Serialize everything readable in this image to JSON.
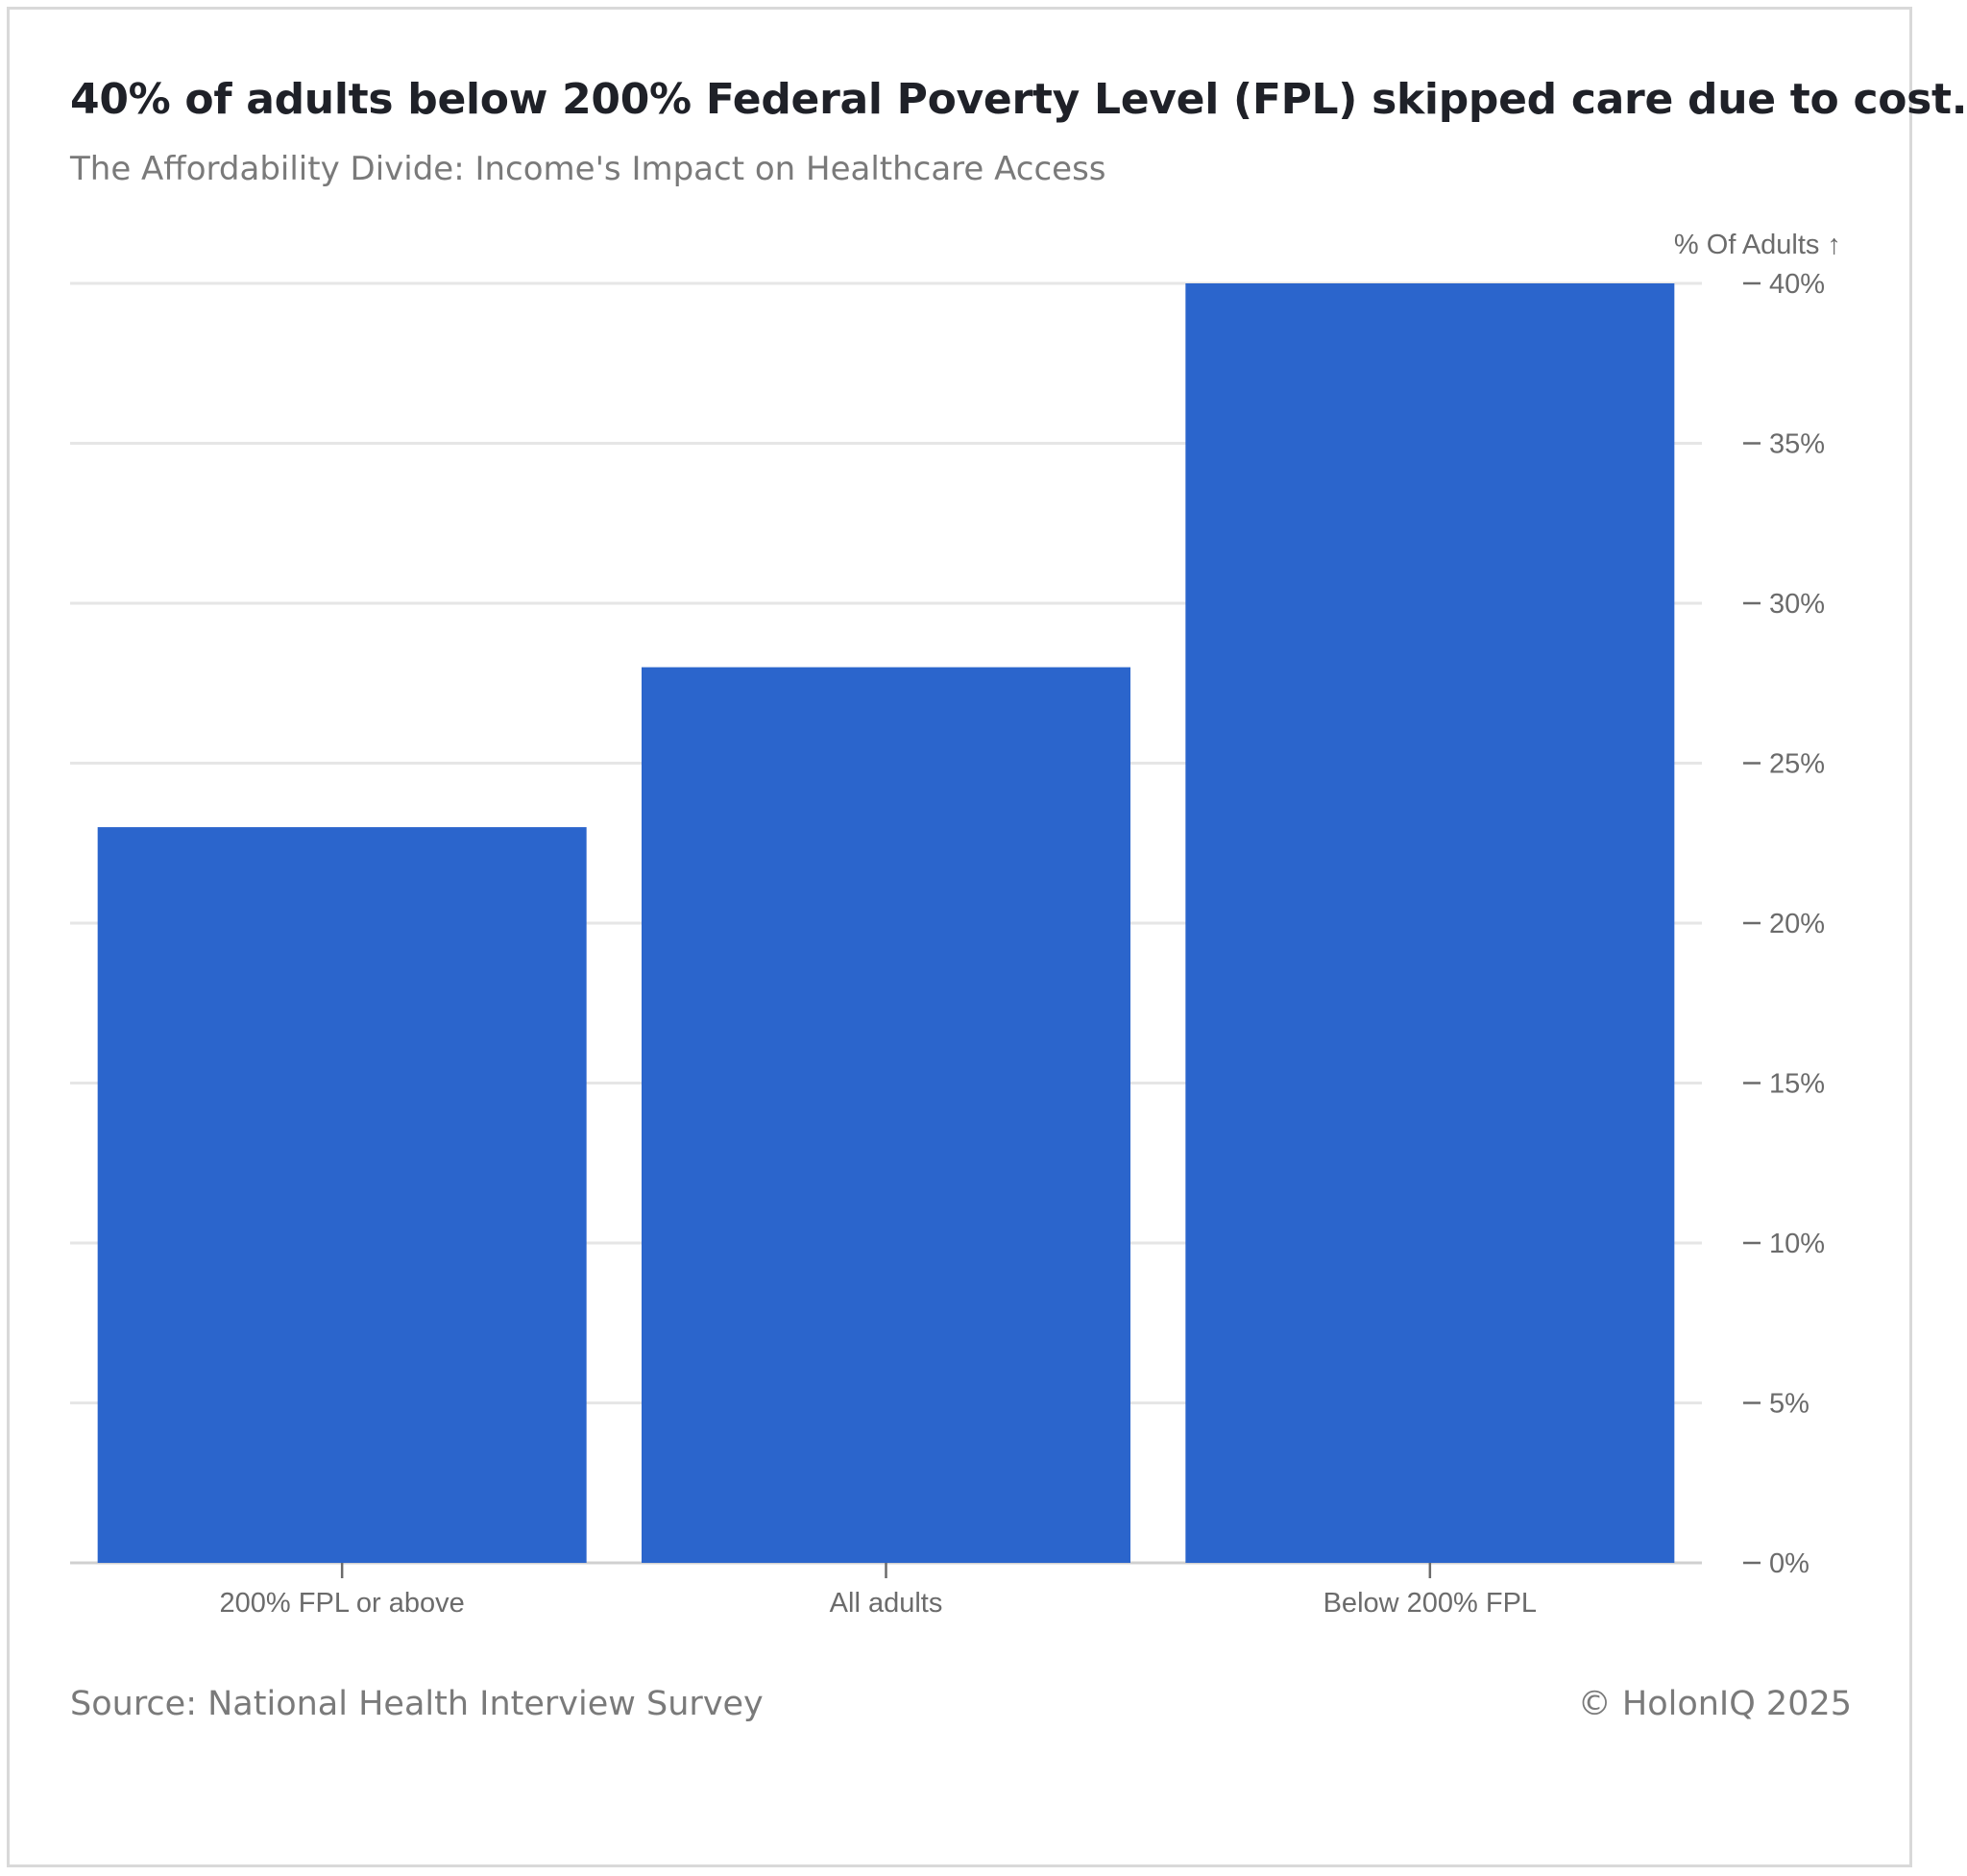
{
  "title": "40% of adults below 200% Federal Poverty Level (FPL) skipped care due to cost.",
  "subtitle": "The Affordability Divide: Income's Impact on Healthcare Access",
  "footer": {
    "source": "Source: National Health Interview Survey",
    "copyright": "© HolonIQ 2025"
  },
  "colors": {
    "bar": "#2b65cc",
    "grid": "#e6e6e6",
    "axis": "#6b6b6b"
  },
  "chart_data": {
    "type": "bar",
    "categories": [
      "200% FPL or above",
      "All adults",
      "Below 200% FPL"
    ],
    "values": [
      23,
      28,
      40
    ],
    "ylabel": "% Of Adults ↑",
    "y_axis_position": "right",
    "ylim": [
      0,
      40
    ],
    "yticks": [
      0,
      5,
      10,
      15,
      20,
      25,
      30,
      35,
      40
    ],
    "ytick_labels": [
      "0%",
      "5%",
      "10%",
      "15%",
      "20%",
      "25%",
      "30%",
      "35%",
      "40%"
    ],
    "grid": true,
    "legend": "none"
  }
}
